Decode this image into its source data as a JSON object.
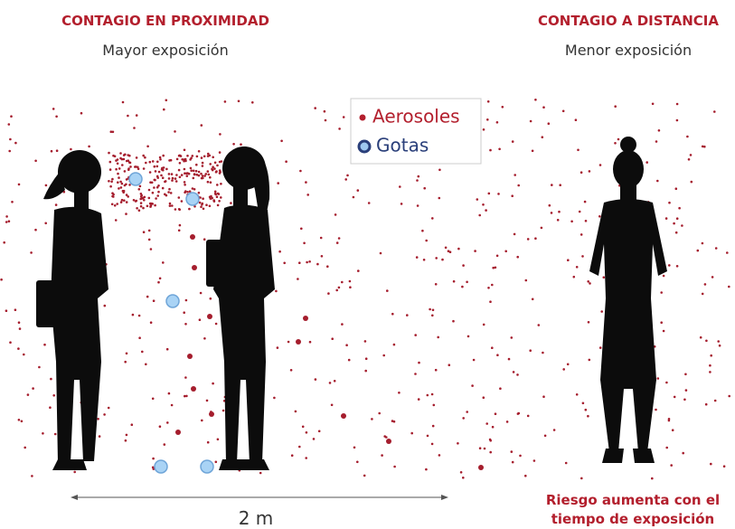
{
  "left": {
    "title": "CONTAGIO EN PROXIMIDAD",
    "subtitle": "Mayor exposición"
  },
  "right": {
    "title": "CONTAGIO A DISTANCIA",
    "subtitle": "Menor exposición"
  },
  "legend": {
    "items": [
      "Aerosoles",
      "Gotas"
    ]
  },
  "distance_label": "2 m",
  "note": [
    "Riesgo aumenta con el",
    "tiempo de exposición"
  ]
}
